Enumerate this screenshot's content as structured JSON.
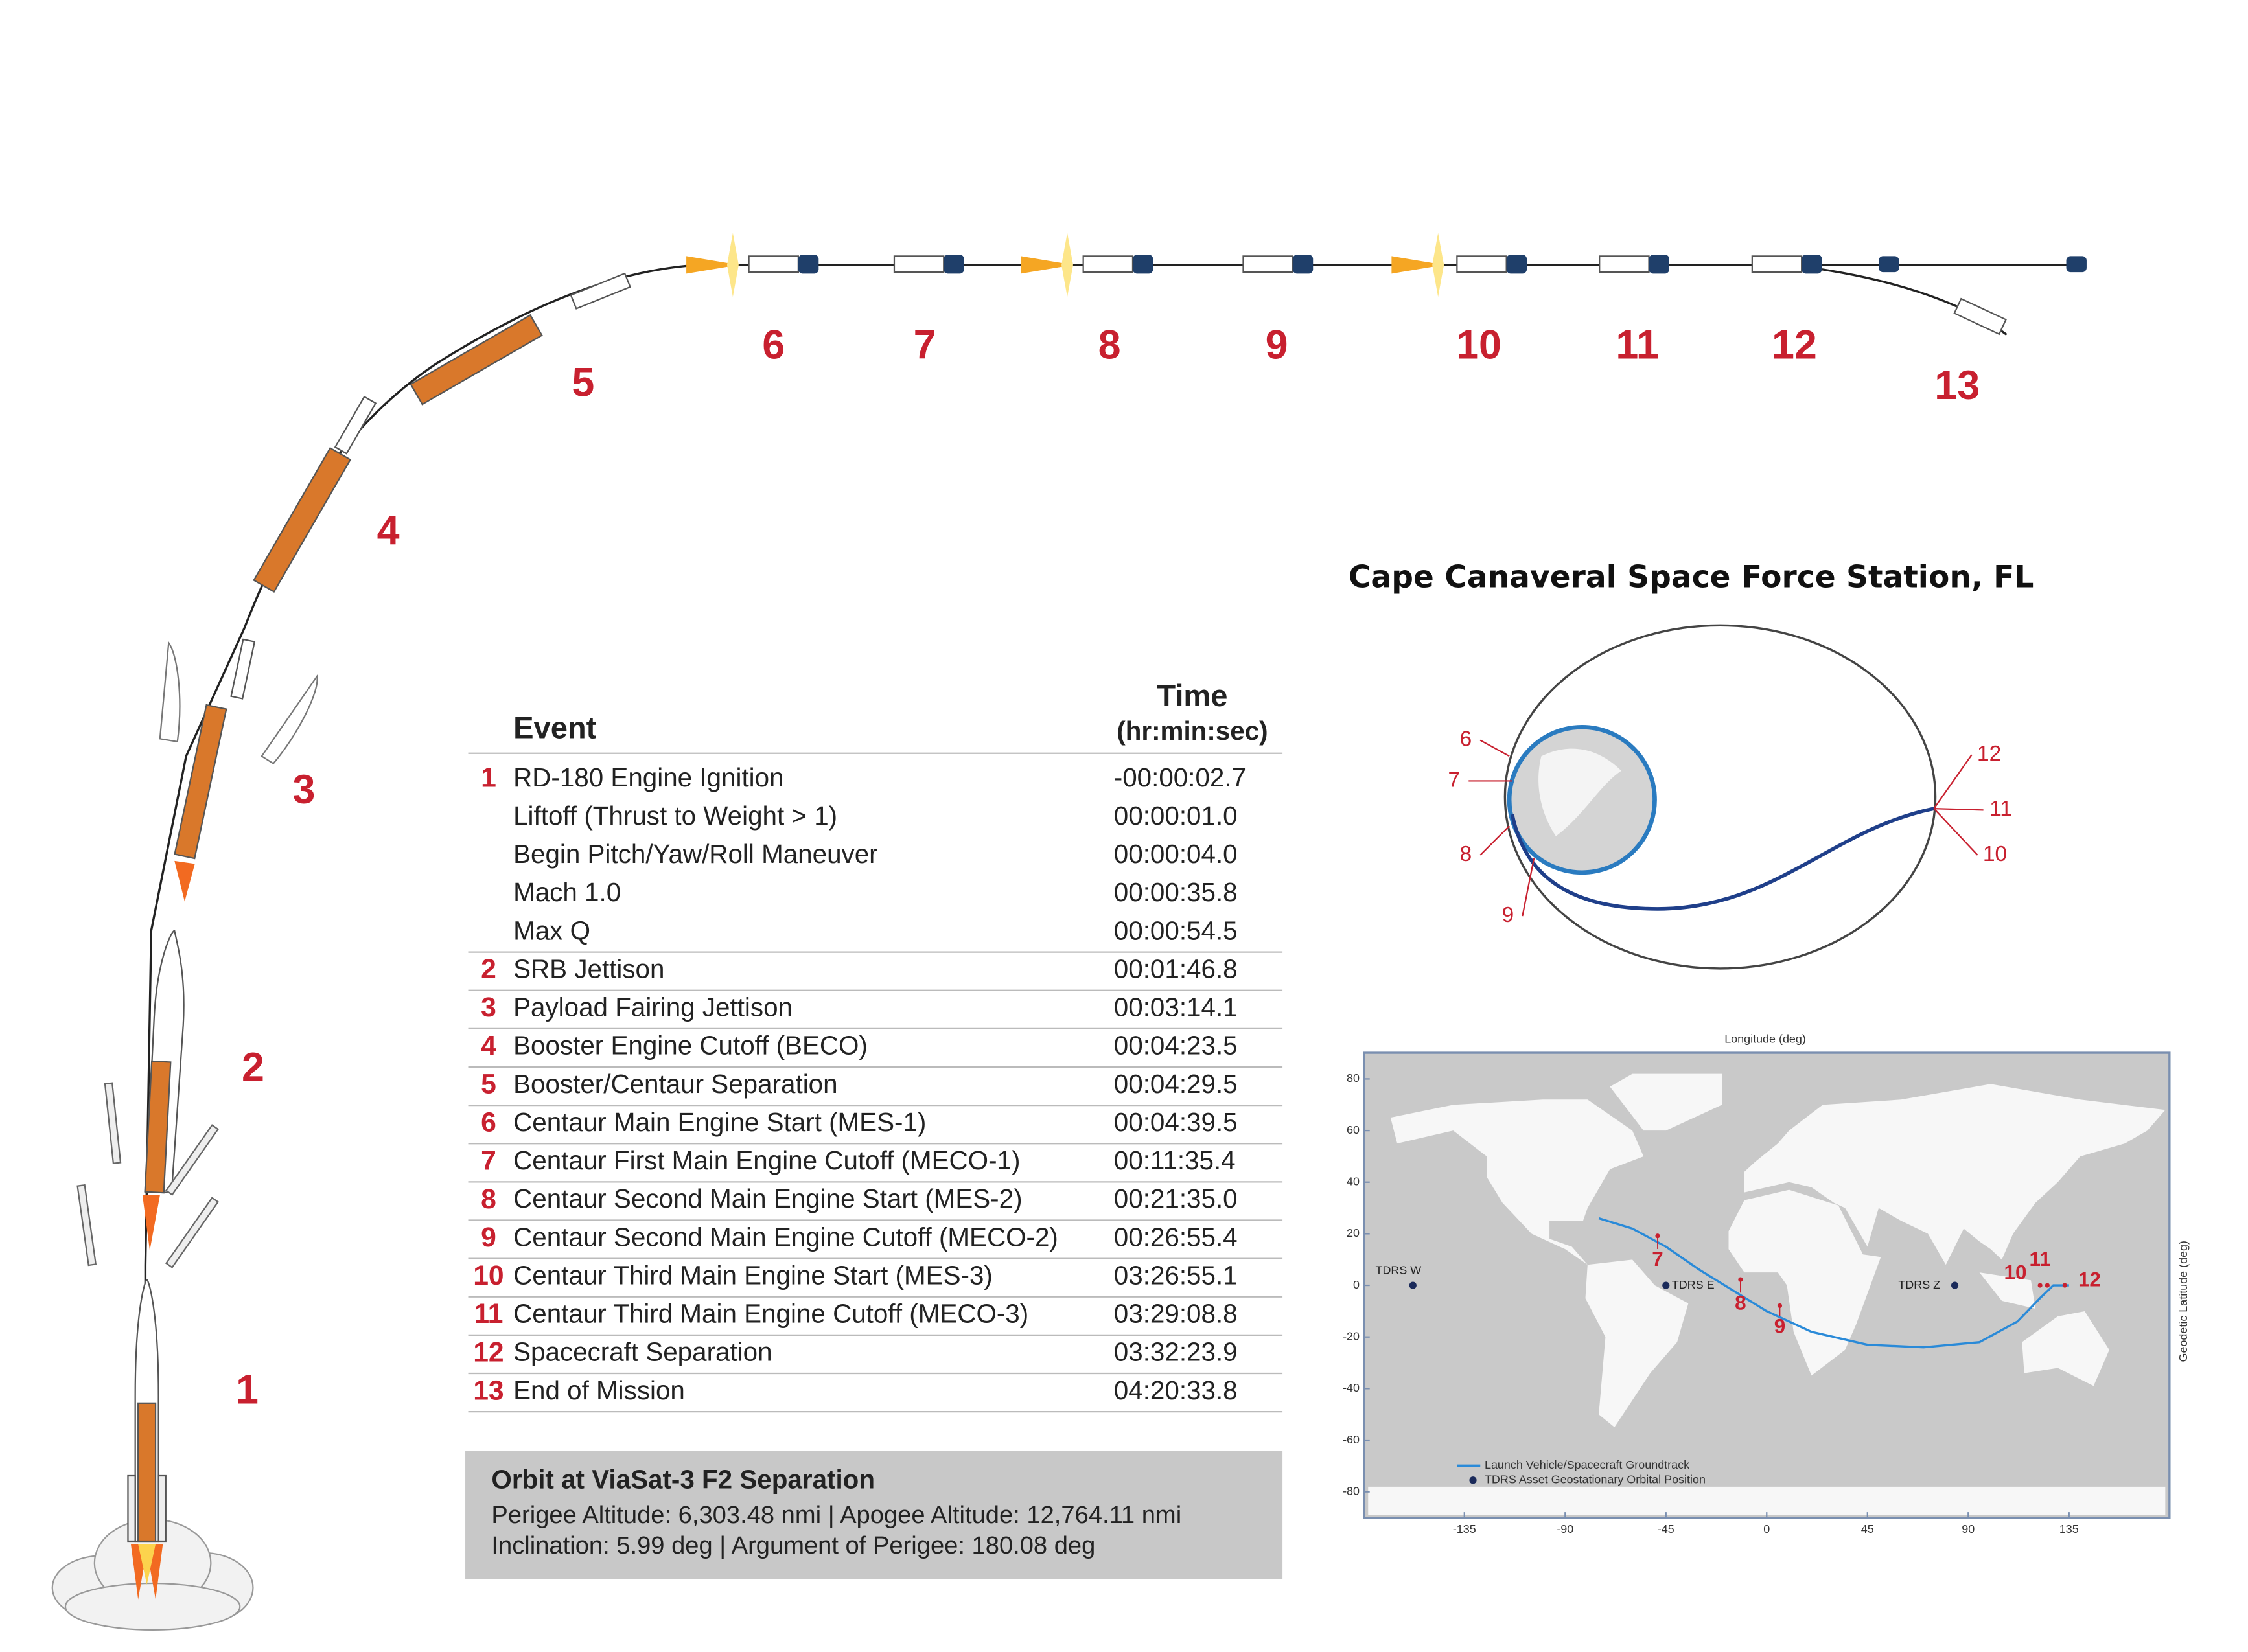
{
  "trajectory": {
    "labels": [
      "1",
      "2",
      "3",
      "4",
      "5",
      "6",
      "7",
      "8",
      "9",
      "10",
      "11",
      "12",
      "13"
    ]
  },
  "table": {
    "header": {
      "event": "Event",
      "time": "Time",
      "time_unit": "(hr:min:sec)"
    },
    "rows": [
      {
        "step": "1",
        "event": "RD-180 Engine Ignition",
        "time": "-00:00:02.7"
      },
      {
        "event": "Liftoff (Thrust to Weight > 1)",
        "time": "00:00:01.0"
      },
      {
        "event": "Begin Pitch/Yaw/Roll Maneuver",
        "time": "00:00:04.0"
      },
      {
        "event": "Mach 1.0",
        "time": "00:00:35.8"
      },
      {
        "event": "Max Q",
        "time": "00:00:54.5"
      },
      {
        "step": "2",
        "event": "SRB Jettison",
        "time": "00:01:46.8"
      },
      {
        "step": "3",
        "event": "Payload Fairing Jettison",
        "time": "00:03:14.1"
      },
      {
        "step": "4",
        "event": "Booster Engine Cutoff (BECO)",
        "time": "00:04:23.5"
      },
      {
        "step": "5",
        "event": "Booster/Centaur Separation",
        "time": "00:04:29.5"
      },
      {
        "step": "6",
        "event": "Centaur Main Engine Start (MES-1)",
        "time": "00:04:39.5"
      },
      {
        "step": "7",
        "event": "Centaur First Main Engine Cutoff (MECO-1)",
        "time": "00:11:35.4"
      },
      {
        "step": "8",
        "event": "Centaur Second Main Engine Start (MES-2)",
        "time": "00:21:35.0"
      },
      {
        "step": "9",
        "event": "Centaur Second Main Engine Cutoff (MECO-2)",
        "time": "00:26:55.4"
      },
      {
        "step": "10",
        "event": "Centaur Third Main Engine Start (MES-3)",
        "time": "03:26:55.1"
      },
      {
        "step": "11",
        "event": "Centaur Third Main Engine Cutoff (MECO-3)",
        "time": "03:29:08.8"
      },
      {
        "step": "12",
        "event": "Spacecraft Separation",
        "time": "03:32:23.9"
      },
      {
        "step": "13",
        "event": "End of Mission",
        "time": "04:20:33.8"
      }
    ]
  },
  "orbit": {
    "title": "Orbit at ViaSat-3 F2 Separation",
    "lines": [
      "Perigee Altitude: 6,303.48 nmi | Apogee Altitude: 12,764.11 nmi",
      "Inclination: 5.99 deg | Argument of Perigee: 180.08 deg"
    ]
  },
  "orbit_diagram": {
    "title": "Cape Canaveral Space Force Station, FL",
    "labels": [
      "6",
      "7",
      "8",
      "9",
      "12",
      "11",
      "10"
    ]
  },
  "map": {
    "x_label": "Longitude (deg)",
    "y_label": "Geodetic Latitude (deg)",
    "xticks": [
      -135,
      -90,
      -45,
      0,
      45,
      90,
      135
    ],
    "yticks": [
      80,
      60,
      40,
      20,
      0,
      -20,
      -40,
      -60,
      -80
    ],
    "stations": [
      {
        "label": "TDRS W",
        "lon": -158,
        "lat": 0
      },
      {
        "label": "TDRS E",
        "lon": -45,
        "lat": 0
      },
      {
        "label": "TDRS Z",
        "lon": 84,
        "lat": 0
      }
    ],
    "events": [
      "7",
      "8",
      "9",
      "10",
      "11",
      "12"
    ],
    "legend": [
      "Launch Vehicle/Spacecraft Groundtrack",
      "TDRS Asset Geostationary Orbital Position"
    ]
  }
}
